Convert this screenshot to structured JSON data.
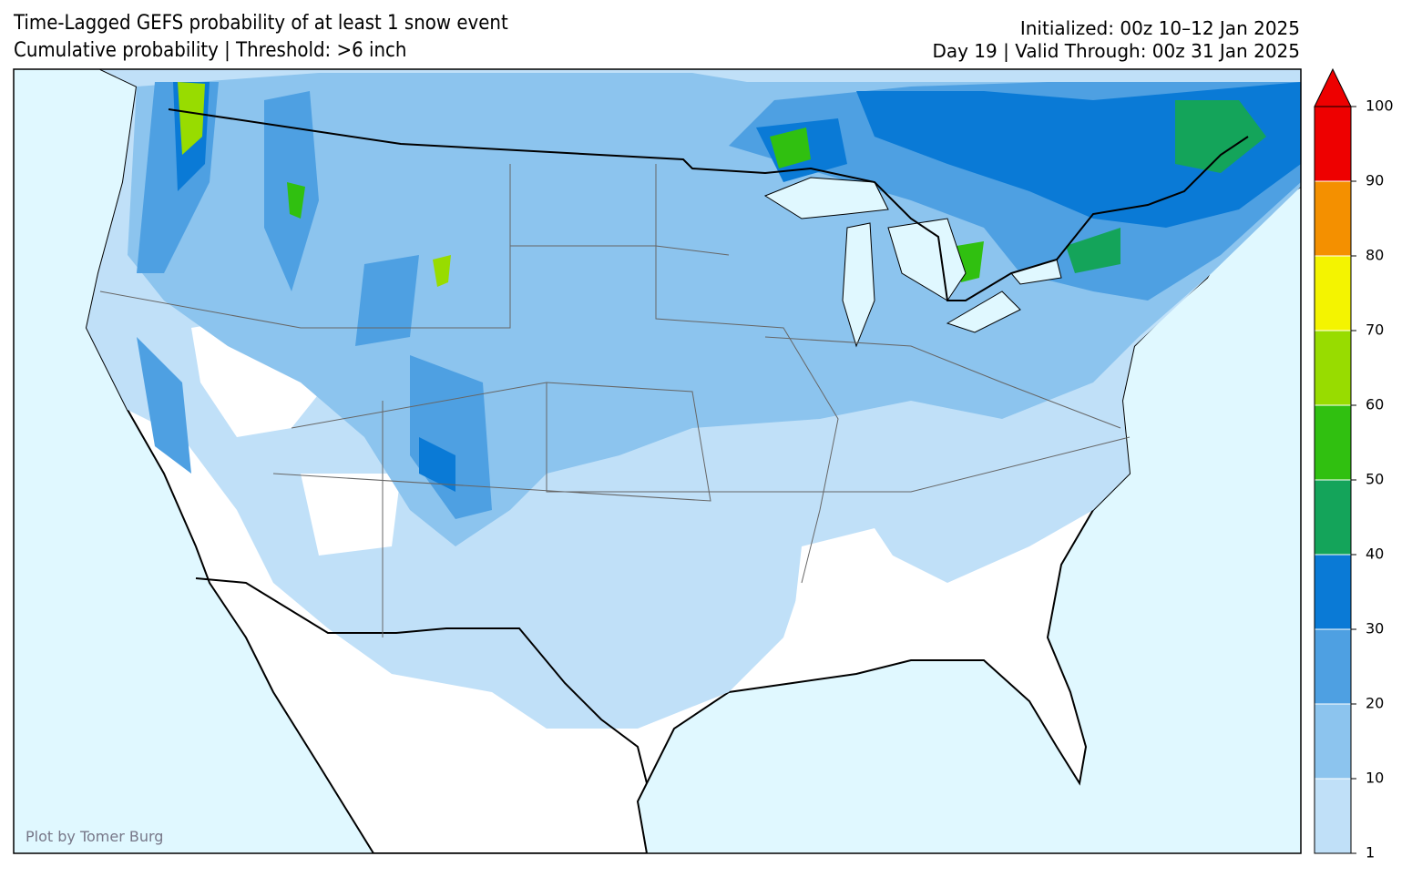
{
  "title": {
    "line1": "Time-Lagged GEFS probability of at least 1 snow event",
    "line2": "Cumulative probability | Threshold: >6 inch"
  },
  "info": {
    "line1": "Initialized: 00z 10–12 Jan 2025",
    "line2": "Day 19 | Valid Through: 00z 31 Jan 2025"
  },
  "colorbar": {
    "levels": [
      1,
      10,
      20,
      30,
      40,
      50,
      60,
      70,
      80,
      90,
      100
    ],
    "colors": [
      "#c0e0f8",
      "#8cc4ee",
      "#4ea0e2",
      "#0a7ad6",
      "#14a45a",
      "#30c010",
      "#98dc00",
      "#f4f400",
      "#f49000",
      "#ee0000"
    ],
    "extend": "max"
  },
  "credit": "Plot by Tomer Burg"
}
